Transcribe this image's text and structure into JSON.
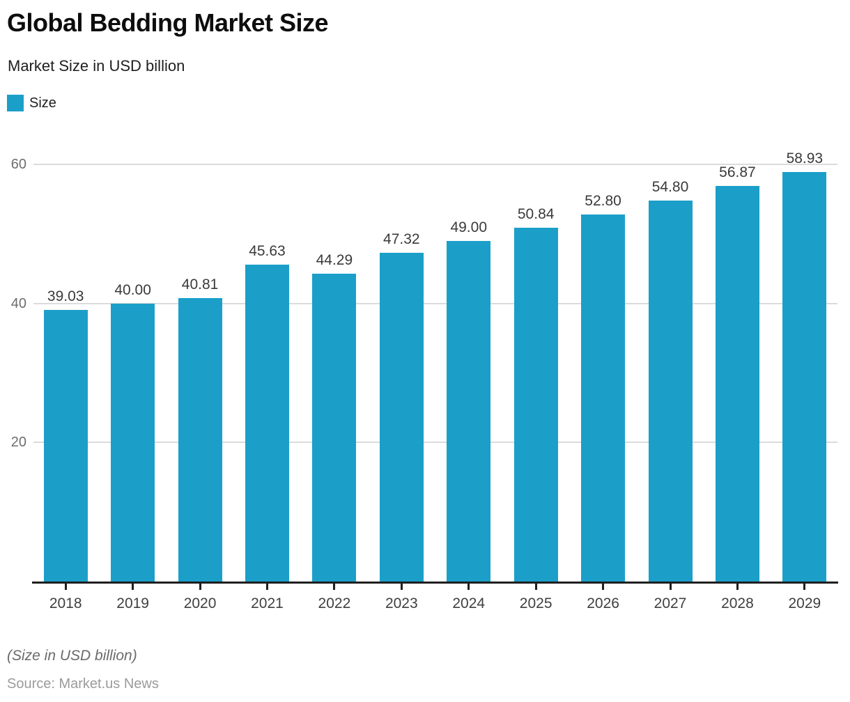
{
  "header": {
    "title": "Global Bedding Market Size",
    "subtitle": "Market Size in USD billion"
  },
  "legend": {
    "label": "Size"
  },
  "colors": {
    "bar": "#1B9FC9",
    "grid": "#dbdbdb",
    "axis": "#1f1f1f"
  },
  "footer": {
    "note": "(Size in USD billion)",
    "source": "Source: Market.us News"
  },
  "chart_data": {
    "type": "bar",
    "title": "Global Bedding Market Size",
    "subtitle": "Market Size in USD billion",
    "categories": [
      "2018",
      "2019",
      "2020",
      "2021",
      "2022",
      "2023",
      "2024",
      "2025",
      "2026",
      "2027",
      "2028",
      "2029"
    ],
    "values": [
      39.03,
      40.0,
      40.81,
      45.63,
      44.29,
      47.32,
      49.0,
      50.84,
      52.8,
      54.8,
      56.87,
      58.93
    ],
    "value_labels": [
      "39.03",
      "40.00",
      "40.81",
      "45.63",
      "44.29",
      "47.32",
      "49.00",
      "50.84",
      "52.80",
      "54.80",
      "56.87",
      "58.93"
    ],
    "series_name": "Size",
    "xlabel": "",
    "ylabel": "",
    "ylim": [
      0,
      60
    ],
    "y_ticks": [
      20,
      40,
      60
    ],
    "grid": true,
    "legend_position": "top-left",
    "data_labels": true
  }
}
